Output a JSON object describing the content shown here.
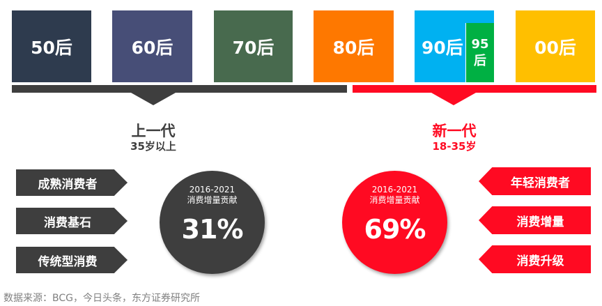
{
  "generations": [
    {
      "label": "50后",
      "color": "#2e3b4e"
    },
    {
      "label": "60后",
      "color": "#474e77"
    },
    {
      "label": "70后",
      "color": "#486a4e"
    },
    {
      "label": "80后",
      "color": "#fe7800"
    },
    {
      "label": "90后",
      "color": "#00b1f1"
    },
    {
      "label": "00后",
      "color": "#ffbf00"
    }
  ],
  "sub_generation": {
    "line1": "95",
    "line2": "后",
    "color": "#00b043"
  },
  "old_gen": {
    "title": "上一代",
    "age": "35岁以上",
    "color": "#3e3e3e",
    "tags": [
      "成熟消费者",
      "消费基石",
      "传统型消费"
    ],
    "circle": {
      "period": "2016-2021",
      "label": "消费增量贡献",
      "value": "31%"
    }
  },
  "new_gen": {
    "title": "新一代",
    "age": "18-35岁",
    "color": "#ff0a22",
    "tags": [
      "年轻消费者",
      "消费增量",
      "消费升级"
    ],
    "circle": {
      "period": "2016-2021",
      "label": "消费增量贡献",
      "value": "69%"
    }
  },
  "source": "数据来源：BCG，今日头条，东方证券研究所"
}
